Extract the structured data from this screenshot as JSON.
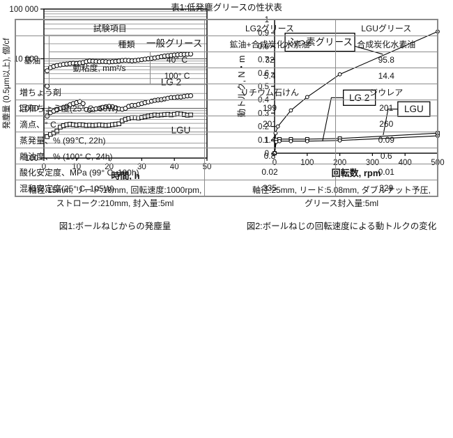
{
  "figures": {
    "fig1": {
      "note1": "軸径:15mm, リード:10mm, 回転速度:1000rpm,",
      "note2": "ストローク:210mm, 封入量:5ml",
      "caption": "図1:ボールねじからの発塵量"
    },
    "fig2": {
      "note1": "軸径:25mm, リード:5.08mm, ダブルナット予圧,",
      "note2": "グリース封入量:5ml",
      "caption": "図2:ボールねじの回転速度による動トルクの変化"
    }
  },
  "table": {
    "title": "表1:低発塵グリースの性状表",
    "col_item": "試験項目",
    "col_lg2": "LG2グリース",
    "col_lgu": "LGUグリース",
    "base_oil": "基油",
    "kind": {
      "label": "種類",
      "lg2": "鉱油+合成炭化水素油",
      "lgu": "合成炭化水素油"
    },
    "viscosity": {
      "label": "動粘度, mm²/s",
      "t40": {
        "label": "40° C",
        "lg2": "32",
        "lgu": "95.8"
      },
      "t100": {
        "label": "100° C",
        "lg2": "5.4",
        "lgu": "14.4"
      }
    },
    "rows": [
      {
        "label": "増ちょう剤",
        "lg2": "リチウム石けん",
        "lgu": "ジウレア"
      },
      {
        "label": "混和ちょう度(25° C, 60W)",
        "lg2": "199",
        "lgu": "201"
      },
      {
        "label": "滴点、° C",
        "lg2": "201",
        "lgu": "260"
      },
      {
        "label": "蒸発量、% (99℃, 22h)",
        "lg2": "1.4",
        "lgu": "0.09"
      },
      {
        "label": "離油度、% (100° C, 24h)",
        "lg2": "0.8",
        "lgu": "0.6"
      },
      {
        "label": "酸化安定度、MPa (99° C, 100h)",
        "lg2": "0.02",
        "lgu": "0.01"
      },
      {
        "label": "混和安定度(25° C, 105W)",
        "lg2": "335",
        "lgu": "329"
      }
    ]
  },
  "chart_data": [
    {
      "type": "scatter",
      "title": "",
      "xlabel": "時間, h",
      "ylabel": "発塵量 (0.5μm以上), 個/cf",
      "xlim": [
        0,
        50
      ],
      "ylim": [
        100,
        100000
      ],
      "yscale": "log",
      "grid": "horizontal-log",
      "xticks": [
        0,
        10,
        20,
        30,
        40,
        50
      ],
      "yticks": [
        100,
        1000,
        10000,
        100000
      ],
      "ytick_labels": [
        "100",
        "1 000",
        "10 000",
        "100 000"
      ],
      "series": [
        {
          "name": "一般グリース",
          "marker": "circle",
          "x": [
            1,
            2,
            3,
            4,
            5,
            6,
            7,
            8,
            9,
            10,
            11,
            12,
            13,
            14,
            15,
            16,
            17,
            18,
            19,
            20,
            21,
            22,
            23,
            24,
            25,
            26,
            27,
            28,
            29,
            30,
            31,
            32,
            33,
            34,
            35,
            36,
            37,
            38,
            39,
            40,
            41,
            42,
            43,
            44,
            45
          ],
          "y": [
            5700,
            6600,
            7000,
            7300,
            7500,
            7700,
            7800,
            8000,
            8100,
            8000,
            8200,
            8400,
            8700,
            9000,
            8900,
            8800,
            8700,
            8800,
            8700,
            8600,
            8700,
            8800,
            9000,
            9200,
            9300,
            9200,
            9100,
            9200,
            9400,
            9600,
            9800,
            10000,
            10200,
            10400,
            10700,
            11000,
            11300,
            11500,
            11700,
            11900,
            12000,
            12100,
            12200,
            12300,
            12400
          ]
        },
        {
          "name": "LG 2",
          "marker": "circle",
          "x": [
            1,
            1,
            2,
            3,
            4,
            5,
            6,
            7,
            8,
            9,
            10,
            11,
            12,
            13,
            14,
            15,
            16,
            17,
            18,
            19,
            20,
            21,
            22,
            23,
            24,
            25,
            26,
            27,
            28,
            29,
            30,
            31,
            32,
            33,
            34,
            35,
            36,
            37,
            38,
            39,
            40,
            41,
            42,
            43,
            44,
            45
          ],
          "y": [
            2800,
            700,
            820,
            880,
            930,
            1000,
            1050,
            1100,
            1180,
            1250,
            1300,
            1370,
            1250,
            950,
            920,
            950,
            980,
            1000,
            1050,
            1080,
            1100,
            1080,
            1030,
            980,
            960,
            1000,
            1100,
            1150,
            1150,
            1200,
            1250,
            1300,
            1350,
            1400,
            1450,
            1480,
            1500,
            1550,
            1600,
            1650,
            1650,
            1700,
            1700,
            1750,
            1780,
            1800
          ]
        },
        {
          "name": "LGU",
          "marker": "square",
          "x": [
            1,
            2,
            3,
            4,
            5,
            6,
            7,
            8,
            9,
            10,
            11,
            12,
            13,
            14,
            15,
            16,
            17,
            18,
            19,
            20,
            21,
            22,
            23,
            24,
            25,
            26,
            27,
            28,
            29,
            30,
            31,
            32,
            33,
            34,
            35,
            36,
            37,
            38,
            39,
            40,
            41,
            42,
            43,
            44,
            45
          ],
          "y": [
            270,
            300,
            320,
            350,
            420,
            450,
            470,
            480,
            470,
            460,
            470,
            465,
            455,
            460,
            455,
            460,
            465,
            460,
            455,
            460,
            470,
            480,
            490,
            560,
            600,
            630,
            650,
            650,
            640,
            660,
            680,
            700,
            720,
            740,
            730,
            740,
            750,
            760,
            740,
            760,
            780,
            770,
            750,
            730,
            740
          ]
        }
      ],
      "labels": [
        {
          "text": "一般グリース",
          "x": 40,
          "y": 20000
        },
        {
          "text": "LG 2",
          "x": 39,
          "y": 3300
        },
        {
          "text": "LGU",
          "x": 42,
          "y": 360
        }
      ]
    },
    {
      "type": "line",
      "title": "",
      "xlabel": "回転数, rpm",
      "ylabel": "動トルク, N・m",
      "xlim": [
        0,
        500
      ],
      "ylim": [
        0,
        1
      ],
      "grid": "off",
      "xticks": [
        0,
        100,
        200,
        300,
        400,
        500
      ],
      "yticks": [
        0,
        0.1,
        0.2,
        0.3,
        0.4,
        0.5,
        0.6,
        0.7,
        0.8,
        0.9,
        1
      ],
      "ytick_labels": [
        "0",
        "0.1",
        "0.2",
        "0.3",
        "0.4",
        "0.5",
        "0.6",
        "0.7",
        "0.8",
        "0.9",
        "1"
      ],
      "series": [
        {
          "name": "ふっ素グリース",
          "marker": "circle",
          "x": [
            0,
            3,
            10,
            50,
            100,
            200,
            500
          ],
          "y": [
            0,
            0.15,
            0.2,
            0.32,
            0.42,
            0.59,
            0.91
          ]
        },
        {
          "name": "LG 2",
          "marker": "square",
          "x": [
            0,
            5,
            15,
            50,
            100,
            200,
            500
          ],
          "y": [
            0,
            0.1,
            0.105,
            0.105,
            0.105,
            0.11,
            0.15
          ]
        },
        {
          "name": "LGU",
          "marker": "circle",
          "x": [
            0,
            5,
            15,
            50,
            100,
            200,
            500
          ],
          "y": [
            0,
            0.085,
            0.09,
            0.09,
            0.09,
            0.095,
            0.13
          ]
        }
      ],
      "annotations": [
        {
          "text": "ふっ素グリース",
          "cx": 139,
          "cy": 0.83,
          "w": 100,
          "h": 26,
          "leader": [
            [
              246,
              0.8
            ],
            [
              332,
              0.74
            ]
          ]
        },
        {
          "text": "LG 2",
          "cx": 260,
          "cy": 0.415,
          "w": 46,
          "h": 22,
          "leader": [
            [
              213,
              0.415
            ],
            [
              174,
              0.415
            ],
            [
              147,
              0.09
            ]
          ]
        },
        {
          "text": "LGU",
          "cx": 427,
          "cy": 0.33,
          "w": 46,
          "h": 21,
          "leader": [
            [
              381,
              0.33
            ],
            [
              348,
              0.33
            ],
            [
              333,
              0.135
            ]
          ]
        }
      ]
    }
  ]
}
